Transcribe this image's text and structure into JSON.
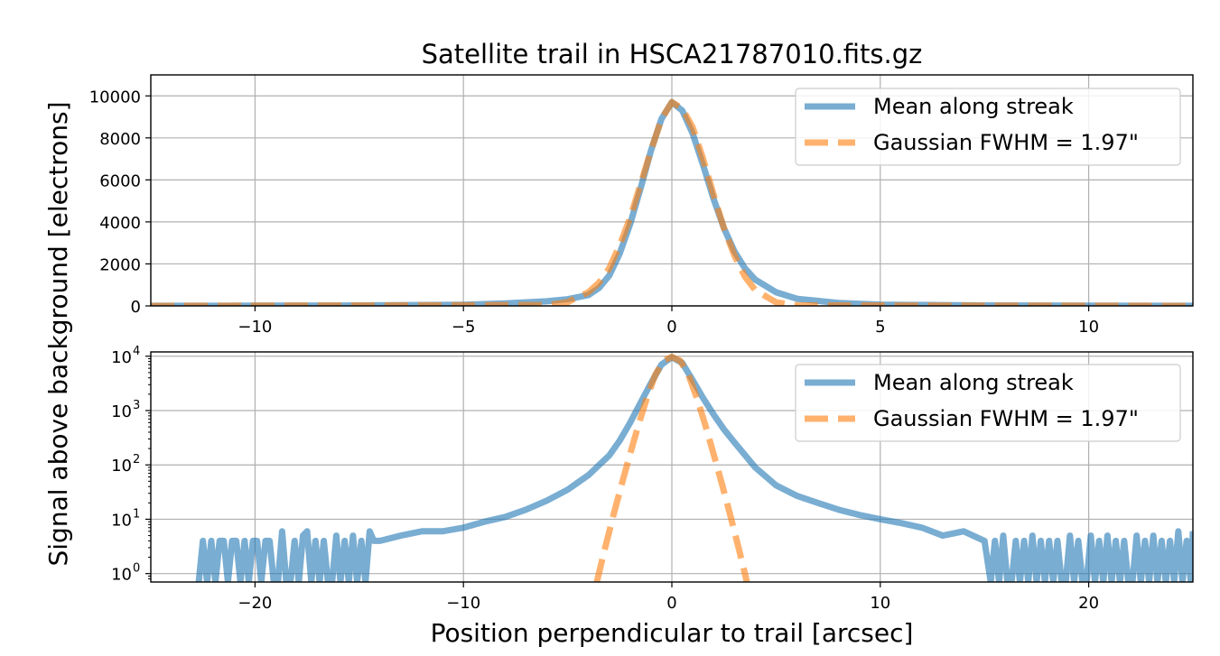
{
  "figure": {
    "title": "Satellite trail in HSCA21787010.fits.gz",
    "xlabel": "Position perpendicular to trail [arcsec]",
    "ylabel": "Signal above background [electrons]"
  },
  "colors": {
    "mean": "#1f77b4",
    "gaussian": "#ff7f0e",
    "grid": "#b0b0b0"
  },
  "chart_data": [
    {
      "type": "line",
      "title": "Satellite trail in HSCA21787010.fits.gz",
      "xlim": [
        -12.5,
        12.5
      ],
      "ylim": [
        0,
        11000
      ],
      "yscale": "linear",
      "grid": true,
      "legend_position": "upper right",
      "xticks": [
        -10,
        -5,
        0,
        5,
        10
      ],
      "xtick_labels": [
        "−10",
        "−5",
        "0",
        "5",
        "10"
      ],
      "yticks": [
        0,
        2000,
        4000,
        6000,
        8000,
        10000
      ],
      "ytick_labels": [
        "0",
        "2000",
        "4000",
        "6000",
        "8000",
        "10000"
      ],
      "series": [
        {
          "name": "Mean along streak",
          "style": "solid",
          "x": [
            -12.5,
            -10,
            -7.5,
            -5,
            -4,
            -3,
            -2.5,
            -2,
            -1.75,
            -1.5,
            -1.25,
            -1,
            -0.75,
            -0.5,
            -0.25,
            0,
            0.25,
            0.5,
            0.75,
            1,
            1.25,
            1.5,
            1.75,
            2,
            2.5,
            3,
            4,
            5,
            7.5,
            10,
            12.5
          ],
          "y": [
            5,
            8,
            20,
            55,
            120,
            220,
            320,
            520,
            850,
            1450,
            2500,
            3900,
            5600,
            7400,
            8900,
            9700,
            9300,
            8200,
            6700,
            5100,
            3700,
            2600,
            1800,
            1250,
            650,
            340,
            140,
            60,
            20,
            8,
            5
          ]
        },
        {
          "name": "Gaussian FWHM = 1.97\"",
          "style": "dashed",
          "x": [
            -12.5,
            -3,
            -2.5,
            -2,
            -1.75,
            -1.5,
            -1.25,
            -1,
            -0.75,
            -0.5,
            -0.25,
            0,
            0.25,
            0.5,
            0.75,
            1,
            1.25,
            1.5,
            1.75,
            2,
            2.5,
            3,
            12.5
          ],
          "y": [
            0,
            40,
            180,
            650,
            1100,
            1800,
            2900,
            4200,
            5800,
            7400,
            8900,
            9700,
            9400,
            8500,
            7000,
            5300,
            3700,
            2400,
            1400,
            750,
            170,
            25,
            0
          ]
        }
      ]
    },
    {
      "type": "line",
      "xlim": [
        -25,
        25
      ],
      "ylim": [
        0.7,
        12000
      ],
      "yscale": "log",
      "grid": true,
      "legend_position": "upper right",
      "xticks": [
        -20,
        -10,
        0,
        10,
        20
      ],
      "xtick_labels": [
        "−20",
        "−10",
        "0",
        "10",
        "20"
      ],
      "ytick_exponents": [
        "0",
        "1",
        "2",
        "3",
        "4"
      ],
      "ytick_base": "10",
      "series": [
        {
          "name": "Mean along streak",
          "style": "solid",
          "x": [
            -25,
            -23,
            -22.7,
            -22.5,
            -22.3,
            -22.1,
            -21.9,
            -21.7,
            -21.5,
            -21.3,
            -21.1,
            -20.9,
            -20.7,
            -20.5,
            -20.3,
            -20.1,
            -19.9,
            -19.7,
            -19.5,
            -19.3,
            -19.1,
            -18.9,
            -18.7,
            -18.5,
            -18.3,
            -18.1,
            -17.9,
            -17.7,
            -17.5,
            -17.3,
            -17.1,
            -16.9,
            -16.7,
            -16.5,
            -16.3,
            -16.1,
            -15.9,
            -15.7,
            -15.5,
            -15.3,
            -15.1,
            -14.9,
            -14.7,
            -14.5,
            -14.3,
            -14.1,
            -14,
            -13,
            -12,
            -11,
            -10,
            -9,
            -8,
            -7,
            -6,
            -5,
            -4,
            -3,
            -2.5,
            -2,
            -1.5,
            -1,
            -0.5,
            0,
            0.5,
            1,
            1.5,
            2,
            2.5,
            3,
            4,
            5,
            6,
            7,
            8,
            9,
            10,
            11,
            12,
            13,
            14,
            15,
            15.3,
            15.5,
            15.7,
            15.9,
            16.1,
            16.3,
            16.5,
            16.7,
            16.9,
            17.1,
            17.3,
            17.5,
            17.7,
            17.9,
            18.1,
            18.3,
            18.5,
            18.7,
            18.9,
            19.1,
            19.3,
            19.5,
            19.7,
            19.9,
            20.1,
            20.3,
            20.5,
            20.7,
            20.9,
            21.1,
            21.3,
            21.5,
            21.7,
            21.9,
            22.1,
            22.3,
            22.5,
            22.7,
            22.9,
            23.1,
            23.3,
            23.5,
            23.7,
            23.9,
            24.1,
            24.3,
            24.5,
            24.7,
            24.9,
            25
          ],
          "y": [
            null,
            null,
            0.7,
            4,
            0.7,
            4,
            0.7,
            4,
            4,
            0.7,
            4,
            4,
            0.7,
            4,
            0.7,
            4,
            4,
            0.7,
            4,
            4,
            0.7,
            0.7,
            6,
            0.7,
            0.7,
            4,
            0.7,
            5,
            6,
            0.7,
            4,
            0.7,
            4,
            0.7,
            0.7,
            5,
            0.7,
            4,
            0.7,
            5,
            0.7,
            4,
            0.7,
            6,
            4,
            4,
            4,
            5,
            6,
            6,
            7,
            9,
            11,
            15,
            22,
            35,
            65,
            150,
            280,
            600,
            1400,
            3200,
            7000,
            9600,
            7500,
            3600,
            1700,
            850,
            450,
            260,
            90,
            42,
            27,
            20,
            15,
            12,
            10,
            8.5,
            7,
            5,
            6,
            4,
            0.7,
            4,
            0.7,
            5,
            0.7,
            0.7,
            4,
            0.7,
            4,
            0.7,
            5,
            0.7,
            4,
            0.7,
            4,
            0.7,
            4,
            0.7,
            0.7,
            5,
            0.7,
            4,
            0.7,
            0.7,
            5,
            0.7,
            4,
            0.7,
            5,
            0.7,
            4,
            0.7,
            4,
            0.7,
            0.7,
            5,
            0.7,
            4,
            0.7,
            5,
            0.7,
            4,
            0.7,
            4,
            0.7,
            6,
            0.7,
            4,
            0.7,
            6
          ]
        },
        {
          "name": "Gaussian FWHM = 1.97\"",
          "style": "dashed",
          "x": [
            -3.6,
            -3.2,
            -2.8,
            -2.4,
            -2,
            -1.6,
            -1.2,
            -0.8,
            -0.4,
            0,
            0.4,
            0.8,
            1.2,
            1.6,
            2,
            2.4,
            2.8,
            3.2,
            3.6
          ],
          "y": [
            0.7,
            3,
            12,
            45,
            160,
            550,
            1700,
            4500,
            8300,
            9700,
            8300,
            4500,
            1700,
            550,
            160,
            45,
            12,
            3,
            0.7
          ]
        }
      ]
    }
  ]
}
